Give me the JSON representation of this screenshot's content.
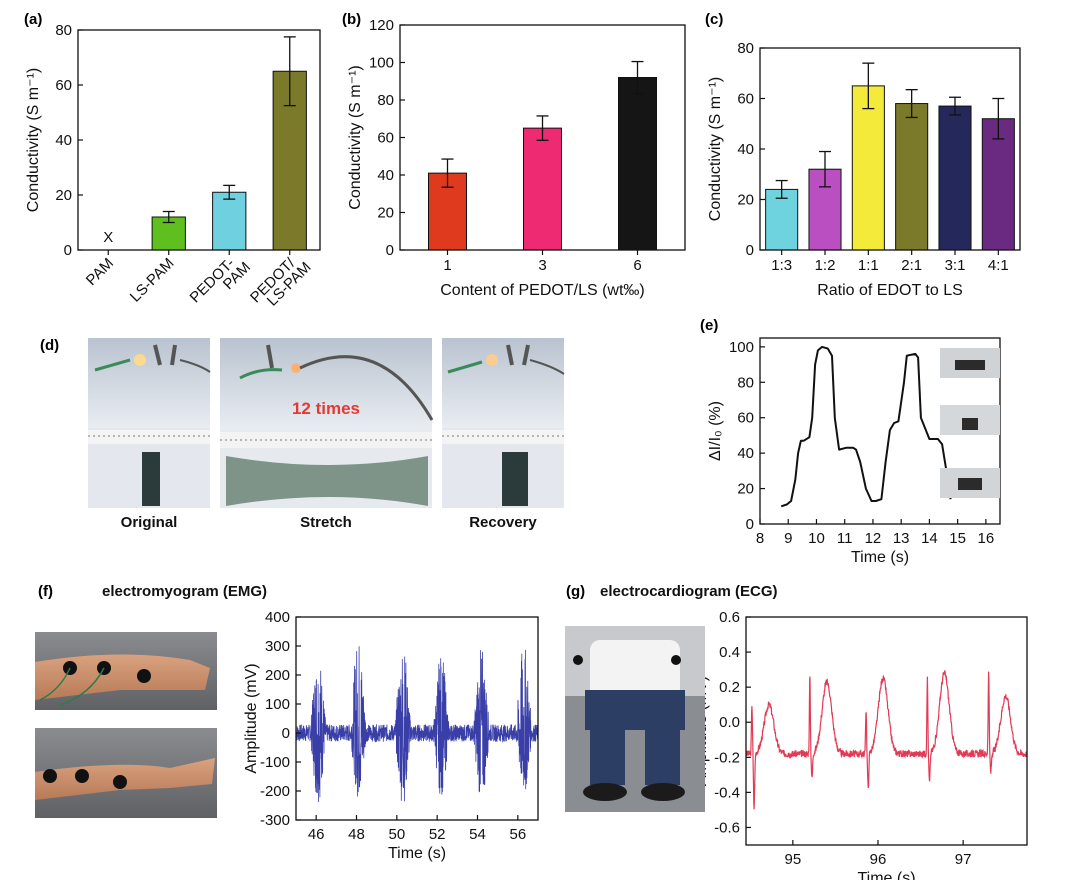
{
  "panels": {
    "a": "(a)",
    "b": "(b)",
    "c": "(c)",
    "d": "(d)",
    "e": "(e)",
    "f": "(f)",
    "g": "(g)"
  },
  "photos": {
    "d_captions": [
      "Original",
      "Stretch",
      "Recovery"
    ],
    "d_overlay": "12 times",
    "f_title": "electromyogram (EMG)",
    "g_title": "electrocardiogram (ECG)"
  },
  "colors": {
    "overlay_text": "#e53935",
    "emg": "#3a3fa8",
    "ecg": "#e23a55"
  },
  "chart_data": [
    {
      "id": "a",
      "type": "bar",
      "categories": [
        "PAM",
        "LS-PAM",
        "PEDOT-PAM",
        "PEDOT/LS-PAM"
      ],
      "category_lines": [
        [
          "PAM"
        ],
        [
          "LS-PAM"
        ],
        [
          "PEDOT-",
          "PAM"
        ],
        [
          "PEDOT/",
          "LS-PAM"
        ]
      ],
      "values": [
        null,
        12,
        21,
        65
      ],
      "errors": [
        null,
        2,
        2.5,
        12.5
      ],
      "bar_colors": [
        "#9e4fb5",
        "#5fbf1e",
        "#6fd0e0",
        "#7a7a2a"
      ],
      "missing_marker": "X",
      "ylabel": "Conductivity (S m⁻¹)",
      "ylim": [
        0,
        80
      ],
      "yticks": [
        0,
        20,
        40,
        60,
        80
      ]
    },
    {
      "id": "b",
      "type": "bar",
      "categories": [
        "1",
        "3",
        "6"
      ],
      "values": [
        41,
        65,
        92
      ],
      "errors": [
        7.5,
        6.5,
        8.5
      ],
      "bar_colors": [
        "#e03a1e",
        "#ee2a72",
        "#151515"
      ],
      "xlabel": "Content of PEDOT/LS (wt‰)",
      "ylabel": "Conductivity (S m⁻¹)",
      "ylim": [
        0,
        120
      ],
      "yticks": [
        0,
        20,
        40,
        60,
        80,
        100,
        120
      ]
    },
    {
      "id": "c",
      "type": "bar",
      "categories": [
        "1:3",
        "1:2",
        "1:1",
        "2:1",
        "3:1",
        "4:1"
      ],
      "values": [
        24,
        32,
        65,
        58,
        57,
        52
      ],
      "errors": [
        3.5,
        7,
        9,
        5.5,
        3.5,
        8
      ],
      "bar_colors": [
        "#6fd3df",
        "#b94fc0",
        "#f4ea3a",
        "#7a7a2a",
        "#25285a",
        "#6b2a82"
      ],
      "xlabel": "Ratio of EDOT to LS",
      "ylabel": "Conductivity (S m⁻¹)",
      "ylim": [
        0,
        80
      ],
      "yticks": [
        0,
        20,
        40,
        60,
        80
      ]
    },
    {
      "id": "e",
      "type": "line",
      "x": [
        8.75,
        8.95,
        9.1,
        9.25,
        9.35,
        9.45,
        9.55,
        9.75,
        9.85,
        9.95,
        10.05,
        10.2,
        10.4,
        10.55,
        10.65,
        10.8,
        11.05,
        11.3,
        11.4,
        11.55,
        11.75,
        11.95,
        12.1,
        12.3,
        12.45,
        12.6,
        12.75,
        12.9,
        13.1,
        13.2,
        13.5,
        13.6,
        13.7,
        14.0,
        14.3,
        14.45,
        14.6,
        14.75
      ],
      "y": [
        10,
        11,
        13,
        25,
        40,
        47,
        47,
        49,
        60,
        90,
        98,
        100,
        99,
        95,
        60,
        42,
        43,
        43,
        42,
        35,
        20,
        13,
        13,
        14,
        35,
        53,
        57,
        58,
        80,
        95,
        96,
        94,
        60,
        48,
        48,
        45,
        30,
        14
      ],
      "xlabel": "Time (s)",
      "ylabel": "ΔI/I₀ (%)",
      "xlim": [
        8,
        16.5
      ],
      "ylim": [
        0,
        105
      ],
      "xticks": [
        8,
        9,
        10,
        11,
        12,
        13,
        14,
        15,
        16
      ],
      "yticks": [
        0,
        20,
        40,
        60,
        80,
        100
      ],
      "color": "#111111"
    },
    {
      "id": "f",
      "type": "line",
      "xlabel": "Time (s)",
      "ylabel": "Amplitude (mV)",
      "xlim": [
        45,
        57
      ],
      "ylim": [
        -300,
        400
      ],
      "xticks": [
        46,
        48,
        50,
        52,
        54,
        56
      ],
      "yticks": [
        -300,
        -200,
        -100,
        0,
        100,
        200,
        300,
        400
      ],
      "baseline_noise": 30,
      "bursts": [
        {
          "center": 46.1,
          "width": 0.9,
          "max": 290,
          "min": -240
        },
        {
          "center": 48.1,
          "width": 0.9,
          "max": 340,
          "min": -230
        },
        {
          "center": 50.3,
          "width": 0.9,
          "max": 320,
          "min": -250
        },
        {
          "center": 52.2,
          "width": 0.9,
          "max": 280,
          "min": -220
        },
        {
          "center": 54.2,
          "width": 0.9,
          "max": 300,
          "min": -240
        },
        {
          "center": 56.3,
          "width": 0.9,
          "max": 310,
          "min": -220
        }
      ],
      "color": "#3a3fa8"
    },
    {
      "id": "g",
      "type": "line",
      "xlabel": "Time (s)",
      "ylabel": "Amplitude (mV)",
      "xlim": [
        94.45,
        97.75
      ],
      "ylim": [
        -0.7,
        0.6
      ],
      "xticks": [
        95,
        96,
        97
      ],
      "yticks": [
        -0.6,
        -0.4,
        -0.2,
        0.0,
        0.2,
        0.4,
        0.6
      ],
      "ytick_labels": [
        "-0.6",
        "-0.4",
        "-0.2",
        "0.0",
        "0.2",
        "0.4",
        "0.6"
      ],
      "beats": [
        94.52,
        95.2,
        95.86,
        96.58,
        97.3
      ],
      "r_peaks": [
        0.22,
        0.34,
        0.2,
        0.33,
        0.37
      ],
      "s_troughs": [
        -0.44,
        -0.3,
        -0.35,
        -0.32,
        -0.27
      ],
      "t_waves": [
        0.05,
        0.18,
        0.2,
        0.23,
        0.1
      ],
      "baseline": -0.18,
      "color": "#e23a55"
    }
  ]
}
